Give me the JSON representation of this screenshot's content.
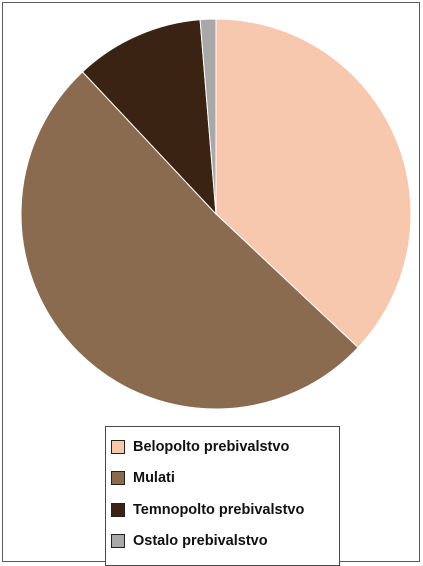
{
  "chart_data": {
    "type": "pie",
    "title": "",
    "start_angle_deg": 0,
    "direction": "clockwise",
    "slices": [
      {
        "label": "Belopolto prebivalstvo",
        "value": 37.0,
        "color": "#f7c8ad"
      },
      {
        "label": "Mulati",
        "value": 51.0,
        "color": "#8b6b4f"
      },
      {
        "label": "Temnopolto prebivalstvo",
        "value": 10.7,
        "color": "#3a2312"
      },
      {
        "label": "Ostalo prebivalstvo",
        "value": 1.3,
        "color": "#a8a8a8"
      }
    ],
    "legend_position": "bottom"
  }
}
